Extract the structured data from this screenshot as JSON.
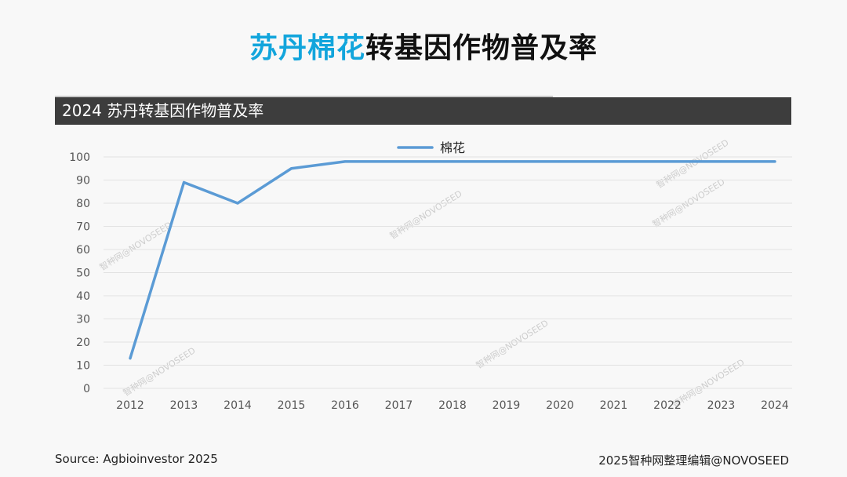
{
  "title": {
    "accent": "苏丹棉花",
    "rest": "转基因作物普及率"
  },
  "chart_header": "2024 苏丹转基因作物普及率",
  "source": "Source: Agbioinvestor 2025",
  "credit": "2025智种网整理编辑@NOVOSEED",
  "watermark": "智种网@NOVOSEED",
  "colors": {
    "accent": "#12a5dc",
    "series": "#5b9bd5",
    "header_bg": "#3d3d3d"
  },
  "chart_data": {
    "type": "line",
    "title": "2024 苏丹转基因作物普及率",
    "xlabel": "",
    "ylabel": "",
    "categories": [
      "2012",
      "2013",
      "2014",
      "2015",
      "2016",
      "2017",
      "2018",
      "2019",
      "2020",
      "2021",
      "2022",
      "2023",
      "2024"
    ],
    "series": [
      {
        "name": "棉花",
        "values": [
          13,
          89,
          80,
          95,
          98,
          98,
          98,
          98,
          98,
          98,
          98,
          98,
          98
        ]
      }
    ],
    "ylim": [
      0,
      100
    ],
    "yticks": [
      0,
      10,
      20,
      30,
      40,
      50,
      60,
      70,
      80,
      90,
      100
    ],
    "grid": true,
    "legend": "top-center"
  }
}
